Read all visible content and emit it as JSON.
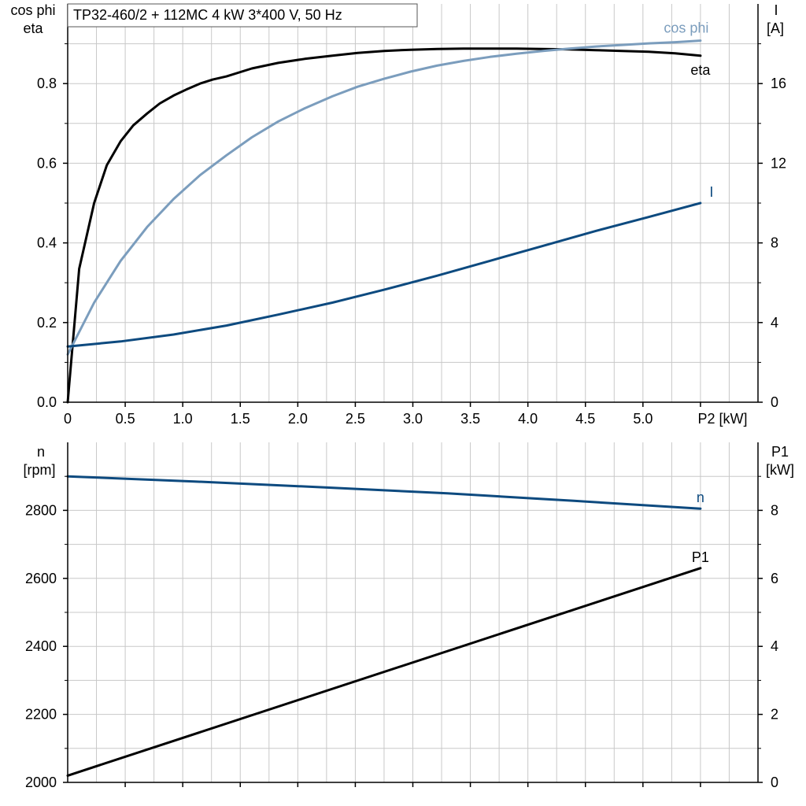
{
  "title": "TP32-460/2 + 112MC   4 kW   3*400 V, 50 Hz",
  "colors": {
    "eta": "#000000",
    "cos_phi": "#7b9dbd",
    "I": "#0d4a7f",
    "n": "#0d4a7f",
    "P1": "#000000",
    "grid": "#c8c8c8"
  },
  "chart_data": [
    {
      "type": "line",
      "x_axis_label": "P2 [kW]",
      "x_ticks": [
        "0",
        "0.5",
        "1.0",
        "1.5",
        "2.0",
        "2.5",
        "3.0",
        "3.5",
        "4.0",
        "4.5",
        "5.0"
      ],
      "xlim": [
        0,
        6
      ],
      "y_left_label": [
        "cos phi",
        "eta"
      ],
      "y_left_ticks": [
        "0.0",
        "0.2",
        "0.4",
        "0.6",
        "0.8"
      ],
      "ylim_left": [
        0,
        1.0
      ],
      "y_right_label": [
        "I",
        "[A]"
      ],
      "y_right_ticks": [
        "0",
        "4",
        "8",
        "12",
        "16"
      ],
      "ylim_right": [
        0,
        20
      ],
      "grid": true,
      "series": [
        {
          "name": "eta",
          "axis": "left",
          "x": [
            0,
            0.1,
            0.23,
            0.34,
            0.46,
            0.57,
            0.69,
            0.8,
            0.92,
            1.03,
            1.15,
            1.26,
            1.38,
            1.6,
            1.83,
            2.06,
            2.3,
            2.52,
            2.75,
            2.98,
            3.21,
            3.44,
            3.67,
            3.9,
            4.13,
            4.36,
            4.59,
            4.82,
            5.05,
            5.28,
            5.5
          ],
          "values": [
            0.0,
            0.335,
            0.5,
            0.595,
            0.655,
            0.695,
            0.725,
            0.75,
            0.77,
            0.785,
            0.8,
            0.81,
            0.818,
            0.838,
            0.852,
            0.862,
            0.87,
            0.877,
            0.882,
            0.885,
            0.887,
            0.888,
            0.888,
            0.888,
            0.887,
            0.886,
            0.884,
            0.882,
            0.88,
            0.876,
            0.87
          ]
        },
        {
          "name": "cos phi",
          "axis": "left",
          "x": [
            0,
            0.23,
            0.46,
            0.69,
            0.92,
            1.15,
            1.38,
            1.6,
            1.83,
            2.06,
            2.3,
            2.52,
            2.75,
            2.98,
            3.21,
            3.44,
            3.67,
            3.9,
            4.13,
            4.36,
            4.59,
            4.82,
            5.05,
            5.28,
            5.5
          ],
          "values": [
            0.12,
            0.25,
            0.355,
            0.44,
            0.51,
            0.57,
            0.62,
            0.665,
            0.705,
            0.738,
            0.768,
            0.792,
            0.812,
            0.83,
            0.845,
            0.857,
            0.867,
            0.875,
            0.882,
            0.888,
            0.893,
            0.897,
            0.901,
            0.904,
            0.908
          ]
        },
        {
          "name": "I",
          "axis": "right",
          "x": [
            0,
            0.46,
            0.92,
            1.38,
            1.83,
            2.3,
            2.75,
            3.21,
            3.67,
            4.13,
            4.59,
            5.05,
            5.5
          ],
          "values": [
            2.8,
            3.05,
            3.4,
            3.85,
            4.4,
            5.0,
            5.65,
            6.35,
            7.1,
            7.85,
            8.6,
            9.3,
            10.0
          ]
        }
      ]
    },
    {
      "type": "line",
      "x_axis_label": "",
      "xlim": [
        0,
        6
      ],
      "y_left_label": [
        "n",
        "[rpm]"
      ],
      "y_left_ticks": [
        "2000",
        "2200",
        "2400",
        "2600",
        "2800"
      ],
      "ylim_left": [
        2000,
        3000
      ],
      "y_right_label": [
        "P1",
        "[kW]"
      ],
      "y_right_ticks": [
        "0",
        "2",
        "4",
        "6",
        "8"
      ],
      "ylim_right": [
        0,
        10
      ],
      "grid": true,
      "series": [
        {
          "name": "n",
          "axis": "left",
          "x": [
            0,
            1.1,
            2.2,
            3.3,
            4.4,
            5.5
          ],
          "values": [
            2900,
            2885,
            2868,
            2850,
            2828,
            2805
          ]
        },
        {
          "name": "P1",
          "axis": "right",
          "x": [
            0,
            5.5
          ],
          "values": [
            0.2,
            6.3
          ]
        }
      ]
    }
  ]
}
